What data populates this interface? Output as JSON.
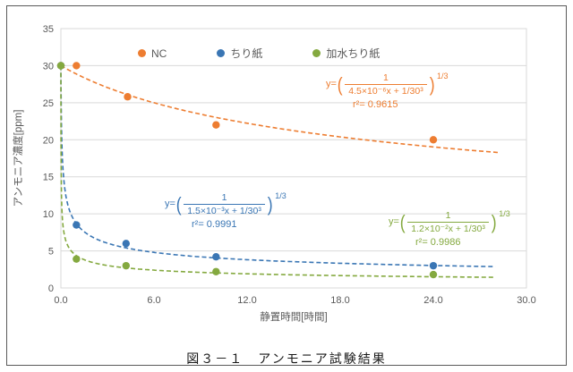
{
  "figure": {
    "caption": "図３－１　アンモニア試験結果"
  },
  "chart_data": {
    "type": "scatter",
    "title": "",
    "xlabel": "静置時間[時間]",
    "ylabel": "アンモニア濃度[ppm]",
    "xlim": [
      0,
      30
    ],
    "ylim": [
      0,
      35
    ],
    "xticks": [
      0,
      6,
      12,
      18,
      24,
      30
    ],
    "xtick_labels": [
      "0.0",
      "6.0",
      "12.0",
      "18.0",
      "24.0",
      "30.0"
    ],
    "yticks": [
      0,
      5,
      10,
      15,
      20,
      25,
      30,
      35
    ],
    "grid": "horizontal",
    "legend_position": "top-inside",
    "grid_color": "#D9D9D9",
    "tick_color": "#595959",
    "series": [
      {
        "id": "nc",
        "name": "NC",
        "color": "#ED7D31",
        "points": [
          [
            0,
            30
          ],
          [
            1,
            30
          ],
          [
            4.3,
            25.8
          ],
          [
            10,
            22
          ],
          [
            24,
            20
          ]
        ],
        "fit_model": "y=(1/(a*x+c))^(1/3)",
        "fit_a": 4.5e-06,
        "fit_c": 3.7037e-05,
        "fit_xmax": 28.3,
        "eq_prefix": "y=",
        "eq_open": "(",
        "eq_numerator": "1",
        "eq_denominator": "4.5×10⁻⁶x + 1/30³",
        "eq_close": ")",
        "eq_exponent": "1/3",
        "r2": "r²= 0.9615"
      },
      {
        "id": "tissue",
        "name": "ちり紙",
        "color": "#3A76B4",
        "points": [
          [
            0,
            30
          ],
          [
            1,
            8.5
          ],
          [
            4.2,
            6
          ],
          [
            10,
            4.2
          ],
          [
            24,
            3
          ]
        ],
        "fit_model": "y=(1/(a*x+c))^(1/3)",
        "fit_a": 0.0015,
        "fit_c": 3.7037e-05,
        "fit_xmax": 28,
        "eq_prefix": "y=",
        "eq_open": "(",
        "eq_numerator": "1",
        "eq_denominator": "1.5×10⁻³x + 1/30³",
        "eq_close": ")",
        "eq_exponent": "1/3",
        "r2": "r²= 0.9991"
      },
      {
        "id": "hydrated-tissue",
        "name": "加水ちり紙",
        "color": "#84A93F",
        "points": [
          [
            0,
            30
          ],
          [
            1,
            3.9
          ],
          [
            4.2,
            3
          ],
          [
            10,
            2.2
          ],
          [
            24,
            1.8
          ]
        ],
        "fit_model": "y=(1/(a*x+c))^(1/3)",
        "fit_a": 0.012,
        "fit_c": 3.7037e-05,
        "fit_xmax": 28,
        "eq_prefix": "y=",
        "eq_open": "(",
        "eq_numerator": "1",
        "eq_denominator": "1.2×10⁻²x + 1/30³",
        "eq_close": ")",
        "eq_exponent": "1/3",
        "r2": "r²= 0.9986"
      }
    ]
  }
}
